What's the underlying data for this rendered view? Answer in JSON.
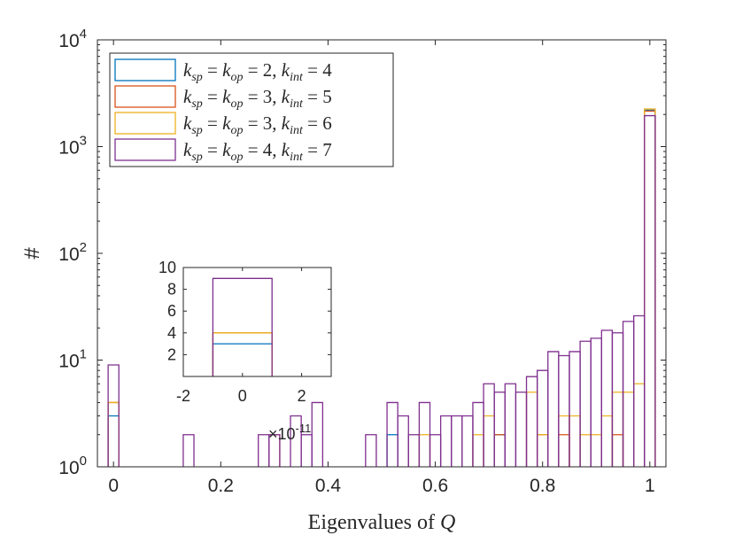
{
  "chart_data": [
    {
      "type": "histogram",
      "title": "",
      "xlabel_prefix": "Eigenvalues of ",
      "xlabel_var": "Q",
      "ylabel": "#",
      "xlim": [
        -0.03,
        1.03
      ],
      "ylim": [
        1,
        10000
      ],
      "yscale": "log",
      "grid": false,
      "legend_position": "top-left",
      "x_ticks": [
        0,
        0.2,
        0.4,
        0.6,
        0.8,
        1
      ],
      "x_tick_labels": [
        "0",
        "0.2",
        "0.4",
        "0.6",
        "0.8",
        "1"
      ],
      "y_tick_labels": [
        {
          "value": 1,
          "base": "10",
          "exp": "0"
        },
        {
          "value": 10,
          "base": "10",
          "exp": "1"
        },
        {
          "value": 100,
          "base": "10",
          "exp": "2"
        },
        {
          "value": 1000,
          "base": "10",
          "exp": "3"
        },
        {
          "value": 10000,
          "base": "10",
          "exp": "4"
        }
      ],
      "bin_edges_start": -0.01,
      "bin_width": 0.02,
      "bins": 51,
      "series": [
        {
          "legend": [
            "k",
            "sp",
            " = ",
            "k",
            "op",
            " = 2, ",
            "k",
            "int",
            " = 4"
          ],
          "color": "#0072BD",
          "counts": [
            3,
            0,
            0,
            0,
            0,
            0,
            0,
            0,
            0,
            0,
            0,
            0,
            0,
            0,
            0,
            0,
            0,
            0,
            0,
            0,
            0,
            0,
            0,
            0,
            0,
            0,
            2,
            0,
            0,
            0,
            0,
            0,
            0,
            0,
            0,
            0,
            2,
            0,
            0,
            0,
            0,
            0,
            0,
            0,
            0,
            0,
            0,
            0,
            0,
            0,
            2200
          ]
        },
        {
          "legend": [
            "k",
            "sp",
            " = ",
            "k",
            "op",
            " = 3, ",
            "k",
            "int",
            " = 5"
          ],
          "color": "#D95319",
          "counts": [
            4,
            0,
            0,
            0,
            0,
            0,
            0,
            0,
            0,
            0,
            0,
            0,
            0,
            0,
            0,
            2,
            0,
            0,
            0,
            0,
            0,
            0,
            0,
            0,
            0,
            0,
            0,
            0,
            0,
            0,
            0,
            0,
            0,
            0,
            0,
            0,
            2,
            0,
            0,
            0,
            2,
            0,
            2,
            0,
            0,
            0,
            0,
            2,
            0,
            0,
            2150
          ]
        },
        {
          "legend": [
            "k",
            "sp",
            " = ",
            "k",
            "op",
            " = 3, ",
            "k",
            "int",
            " = 6"
          ],
          "color": "#EDB120",
          "counts": [
            4,
            0,
            0,
            0,
            0,
            0,
            0,
            0,
            0,
            0,
            0,
            0,
            0,
            0,
            0,
            0,
            0,
            0,
            0,
            0,
            0,
            0,
            0,
            0,
            0,
            0,
            0,
            0,
            0,
            2,
            0,
            0,
            0,
            0,
            2,
            3,
            0,
            0,
            0,
            5,
            2,
            0,
            3,
            3,
            2,
            2,
            3,
            5,
            5,
            6,
            2250
          ]
        },
        {
          "legend": [
            "k",
            "sp",
            " = ",
            "k",
            "op",
            " = 4, ",
            "k",
            "int",
            " = 7"
          ],
          "color": "#7E2F8E",
          "counts": [
            9,
            0,
            0,
            0,
            0,
            0,
            0,
            2,
            0,
            0,
            0,
            0,
            0,
            0,
            2,
            2,
            0,
            3,
            2,
            4,
            0,
            0,
            0,
            0,
            2,
            0,
            4,
            3,
            2,
            4,
            2,
            3,
            3,
            3,
            4,
            6,
            5,
            6,
            5,
            7,
            8,
            12,
            11,
            12,
            15,
            16,
            19,
            18,
            23,
            26,
            1950
          ]
        }
      ],
      "inset": {
        "type": "histogram",
        "xlim": [
          -2,
          3
        ],
        "ylim": [
          0,
          10
        ],
        "x_ticks": [
          -2,
          0,
          2
        ],
        "x_tick_labels": [
          "-2",
          "0",
          "2"
        ],
        "y_ticks": [
          2,
          4,
          6,
          8,
          10
        ],
        "y_tick_labels": [
          "2",
          "4",
          "6",
          "8",
          "10"
        ],
        "x_exponent_text": "×10",
        "x_exponent_sup": "-11",
        "bin_edges": [
          -1,
          1
        ],
        "series_counts": [
          3,
          4,
          4,
          9
        ]
      }
    }
  ]
}
